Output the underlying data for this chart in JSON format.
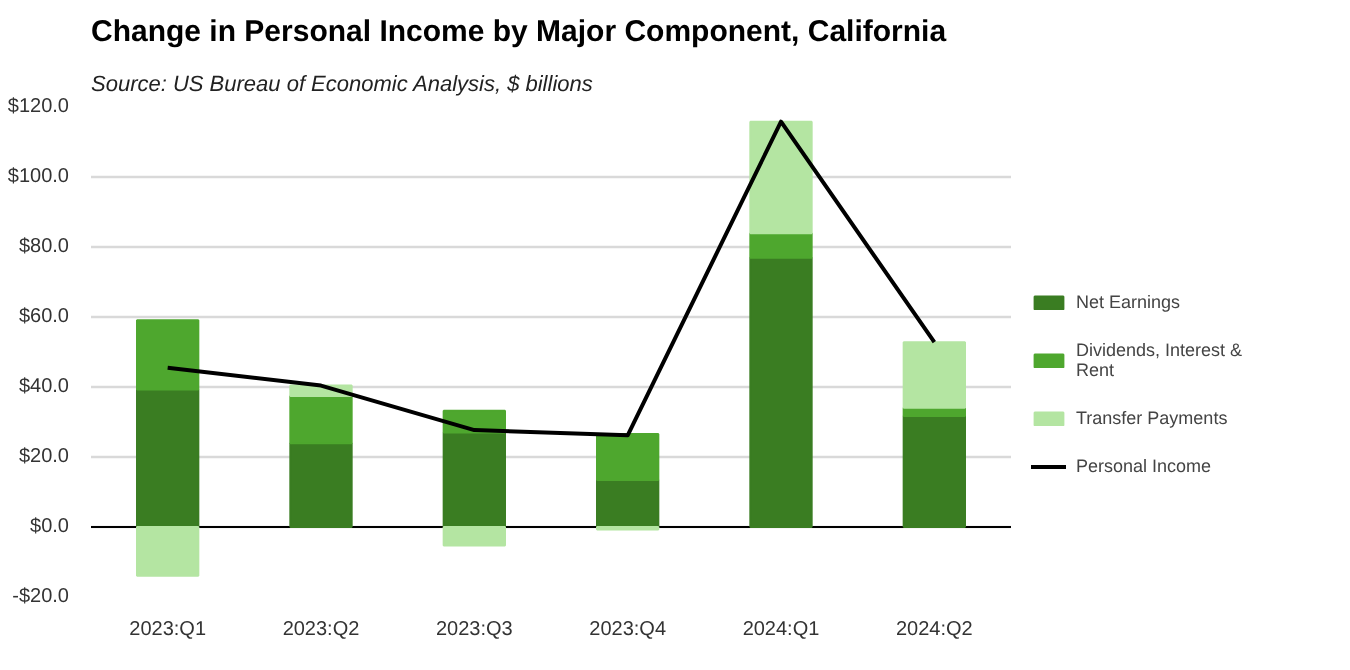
{
  "chart_data": {
    "type": "bar",
    "stacked": true,
    "title": "Change in Personal Income by Major Component, California",
    "subtitle": "Source:  US Bureau of Economic Analysis, $ billions",
    "categories": [
      "2023:Q1",
      "2023:Q2",
      "2023:Q3",
      "2023:Q4",
      "2024:Q1",
      "2024:Q2"
    ],
    "series": [
      {
        "name": "Net Earnings",
        "color": "#3a7d22",
        "values": [
          39.3,
          23.9,
          27.0,
          13.4,
          76.9,
          31.7
        ]
      },
      {
        "name": "Dividends, Interest & Rent",
        "color": "#4ea72e",
        "values": [
          19.8,
          13.5,
          6.2,
          13.2,
          7.0,
          2.4
        ]
      },
      {
        "name": "Transfer Payments",
        "color": "#b4e5a2",
        "values": [
          -13.9,
          3.0,
          -5.3,
          -0.7,
          31.9,
          18.7
        ]
      },
      {
        "name": "Personal Income",
        "type": "line",
        "color": "#000000",
        "values": [
          45.5,
          40.4,
          27.7,
          26.2,
          115.8,
          52.8
        ]
      }
    ],
    "ylim": [
      -20,
      120
    ],
    "yticks": [
      {
        "value": -20,
        "label": "-$20.0"
      },
      {
        "value": 0,
        "label": "$0.0"
      },
      {
        "value": 20,
        "label": "$20.0"
      },
      {
        "value": 40,
        "label": "$40.0"
      },
      {
        "value": 60,
        "label": "$60.0"
      },
      {
        "value": 80,
        "label": "$80.0"
      },
      {
        "value": 100,
        "label": "$100.0"
      },
      {
        "value": 120,
        "label": "$120.0"
      }
    ],
    "grid": "y",
    "legend": "right",
    "marker": "none",
    "line_style": "solid"
  }
}
